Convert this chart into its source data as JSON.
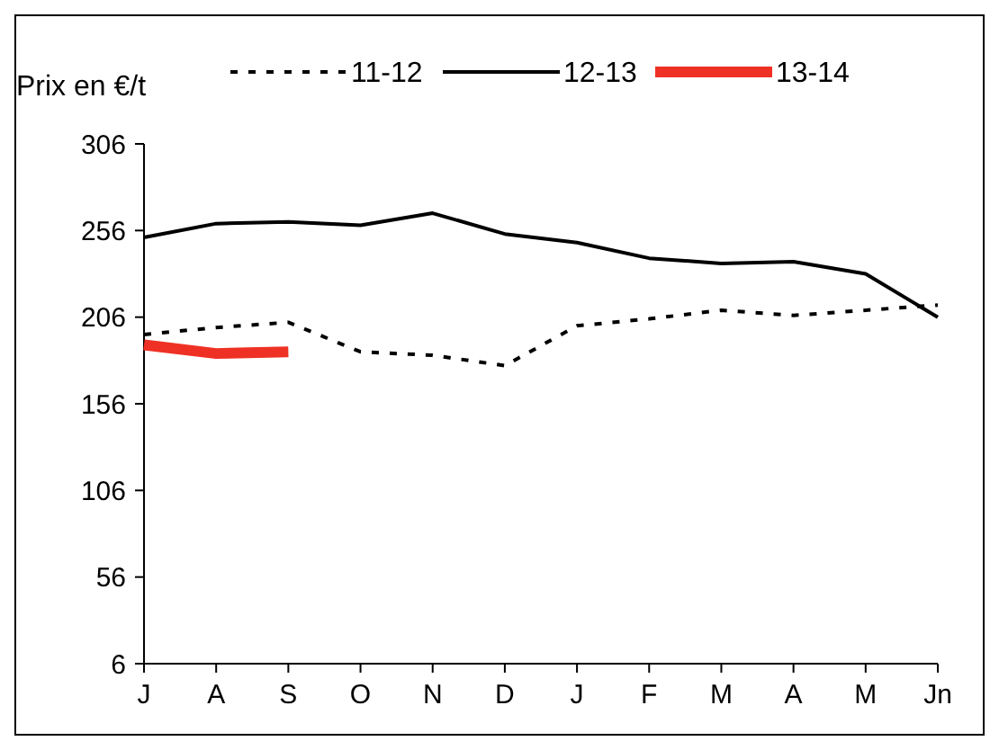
{
  "chart_data": {
    "type": "line",
    "ylabel": "Prix en €/t",
    "categories": [
      "J",
      "A",
      "S",
      "O",
      "N",
      "D",
      "J",
      "F",
      "M",
      "A",
      "M",
      "Jn"
    ],
    "ylim": [
      6,
      306
    ],
    "yticks": [
      6,
      56,
      106,
      156,
      206,
      256,
      306
    ],
    "legend": "top",
    "grid": false,
    "series": [
      {
        "name": "11-12",
        "color": "#000000",
        "line_style": "dashed",
        "values": [
          196,
          200,
          203,
          186,
          184,
          178,
          201,
          205,
          210,
          207,
          210,
          213
        ]
      },
      {
        "name": "12-13",
        "color": "#000000",
        "line_style": "solid",
        "values": [
          252,
          260,
          261,
          259,
          266,
          254,
          249,
          240,
          237,
          238,
          231,
          206
        ]
      },
      {
        "name": "13-14",
        "color": "#ee3124",
        "line_style": "solid",
        "values": [
          190,
          185,
          186,
          null,
          null,
          null,
          null,
          null,
          null,
          null,
          null,
          null
        ]
      }
    ]
  }
}
